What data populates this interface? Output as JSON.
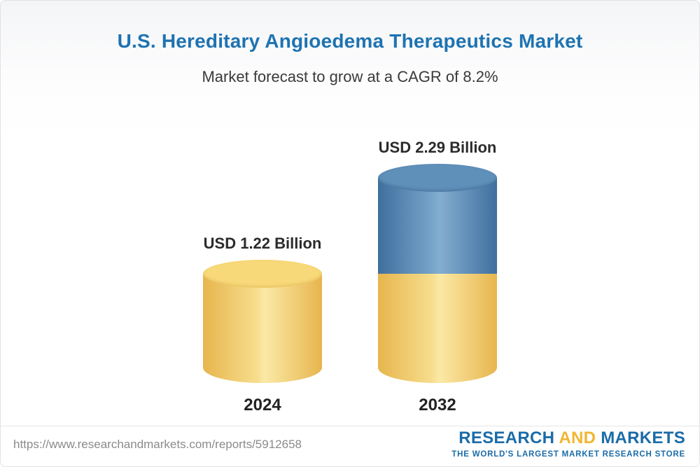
{
  "header": {
    "title": "U.S. Hereditary Angioedema Therapeutics Market",
    "subtitle": "Market forecast to grow at a CAGR of 8.2%"
  },
  "chart_data": {
    "type": "bar",
    "bar_style": "cylinder",
    "title": "U.S. Hereditary Angioedema Therapeutics Market",
    "subtitle": "Market forecast to grow at a CAGR of 8.2%",
    "unit": "USD Billion",
    "cagr_percent": 8.2,
    "categories": [
      "2024",
      "2032"
    ],
    "values": [
      1.22,
      2.29
    ],
    "value_labels": [
      "USD 1.22 Billion",
      "USD 2.29 Billion"
    ],
    "legend": "none",
    "colors": {
      "base": "#F0C75E",
      "growth": "#5B8DB8",
      "title": "#1E73B1"
    },
    "segments": [
      [
        {
          "color": "base",
          "value": 1.22
        }
      ],
      [
        {
          "color": "growth",
          "value": 1.07
        },
        {
          "color": "base",
          "value": 1.22
        }
      ]
    ]
  },
  "footer": {
    "url": "https://www.researchandmarkets.com/reports/5912658",
    "logo": {
      "part1": "RESEARCH ",
      "part2": "AND",
      "part3": " MARKETS",
      "tagline": "THE WORLD'S LARGEST MARKET RESEARCH STORE"
    }
  }
}
